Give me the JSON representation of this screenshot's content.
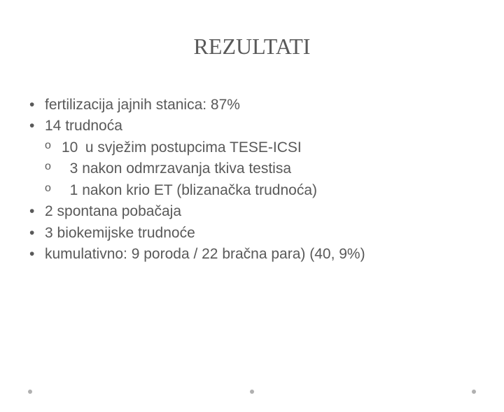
{
  "title": "REZULTATI",
  "bullets": [
    {
      "text": "fertilizacija jajnih stanica: 87%"
    },
    {
      "text": "14 trudnoća"
    },
    {
      "text": "2 spontana pobačaja"
    },
    {
      "text": "3 biokemijske trudnoće"
    },
    {
      "text": "kumulativno: 9 poroda / 22 bračna para) (40, 9%)"
    }
  ],
  "subbullets": [
    {
      "num": "10",
      "text": "u svježim postupcima TESE-ICSI"
    },
    {
      "num": "3",
      "text": "nakon odmrzavanja tkiva testisa"
    },
    {
      "num": "1",
      "text": "nakon krio ET (blizanačka trudnoća)"
    }
  ],
  "colors": {
    "background": "#ffffff",
    "text": "#595959",
    "dot": "#b0b0b0"
  },
  "typography": {
    "title_font": "Times New Roman",
    "title_size_pt": 24,
    "body_font": "Arial",
    "body_size_pt": 16
  }
}
